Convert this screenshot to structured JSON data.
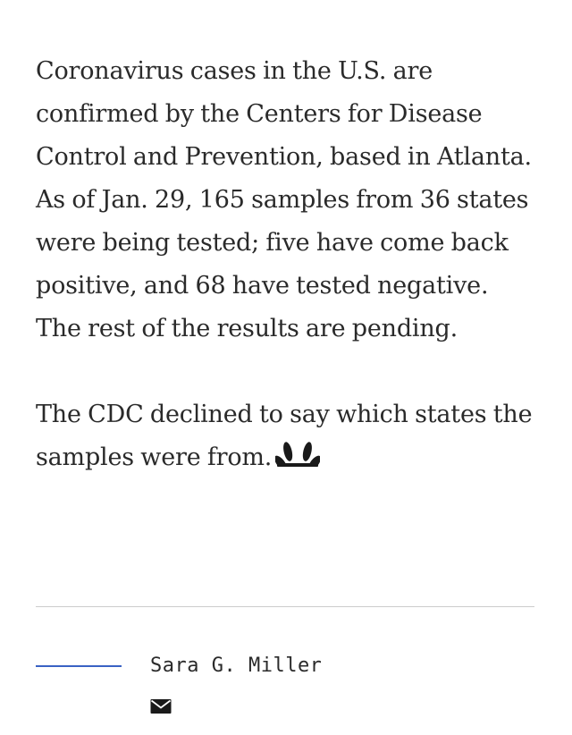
{
  "article": {
    "paragraphs": [
      "Coronavirus cases in the U.S. are confirmed by the Centers for Disease Control and Prevention, based in Atlanta. As of Jan. 29, 165 samples from 36 states were being tested; five have come back positive, and 68 have tested negative. The rest of the results are pending.",
      "The CDC declined to say which states the samples were from."
    ],
    "end_mark_icon": "nbc-peacock-icon"
  },
  "byline": {
    "author": "Sara G. Miller",
    "contact_icon": "email-icon",
    "accent_color": "#3a62c4"
  }
}
